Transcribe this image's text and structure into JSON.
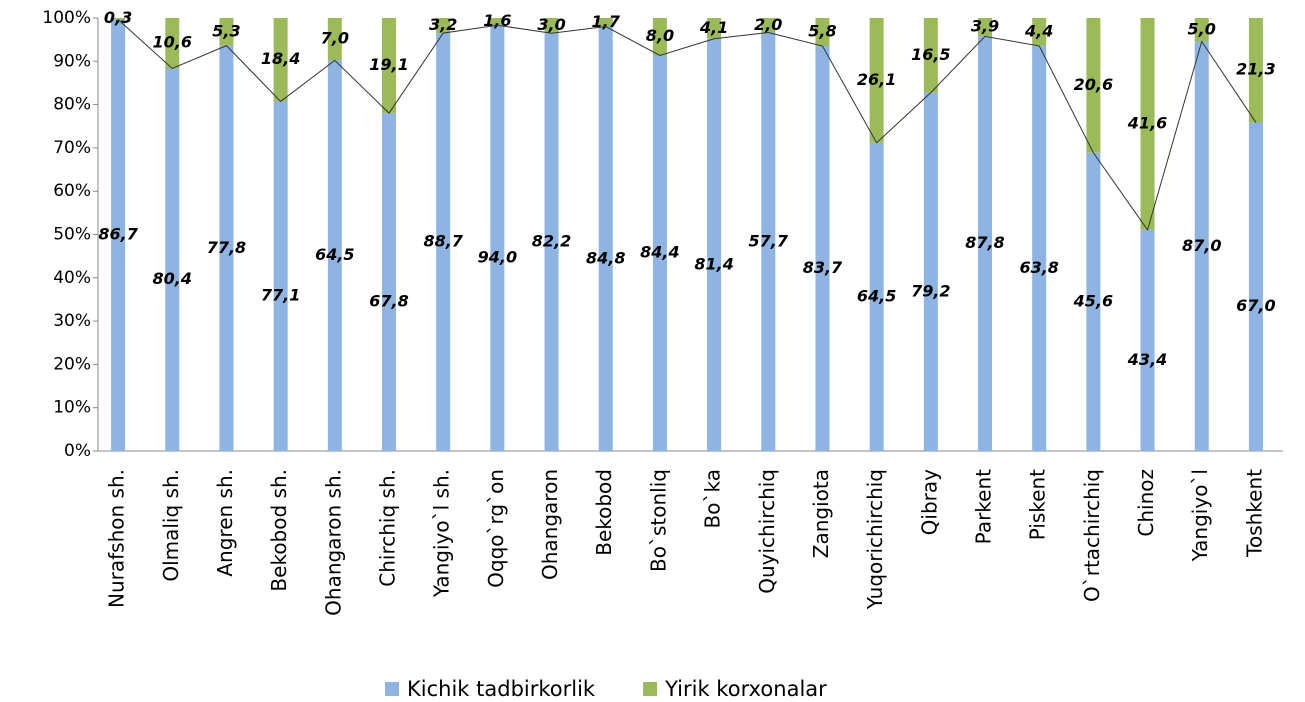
{
  "chart_data": {
    "type": "bar",
    "stacking": "percent",
    "categories": [
      "Nurafshon sh.",
      "Olmaliq sh.",
      "Angren sh.",
      "Bekobod sh.",
      "Ohangaron sh.",
      "Chirchiq sh.",
      "Yangiyo`l sh.",
      "Oqqo`rg`on",
      "Ohangaron",
      "Bekobod",
      "Bo`stonliq",
      "Bo`ka",
      "Quyichirchiq",
      "Zangiota",
      "Yuqorichirchiq",
      "Qibray",
      "Parkent",
      "Piskent",
      "O`rtachirchiq",
      "Chinoz",
      "Yangiyo`l",
      "Toshkent"
    ],
    "series": [
      {
        "name": "Kichik tadbirkorlik",
        "color": "#8db4e2",
        "values": [
          86.7,
          80.4,
          77.8,
          77.1,
          64.5,
          67.8,
          88.7,
          94.0,
          82.2,
          84.8,
          84.4,
          81.4,
          57.7,
          83.7,
          64.5,
          79.2,
          87.8,
          63.8,
          45.6,
          43.4,
          87.0,
          67.0
        ],
        "value_labels": [
          "86,7",
          "80,4",
          "77,8",
          "77,1",
          "64,5",
          "67,8",
          "88,7",
          "94,0",
          "82,2",
          "84,8",
          "84,4",
          "81,4",
          "57,7",
          "83,7",
          "64,5",
          "79,2",
          "87,8",
          "63,8",
          "45,6",
          "43,4",
          "87,0",
          "67,0"
        ]
      },
      {
        "name": "Yirik korxonalar",
        "color": "#9bbb59",
        "values": [
          0.3,
          10.6,
          5.3,
          18.4,
          7.0,
          19.1,
          3.2,
          1.6,
          3.0,
          1.7,
          8.0,
          4.1,
          2.0,
          5.8,
          26.1,
          16.5,
          3.9,
          4.4,
          20.6,
          41.6,
          5.0,
          21.3
        ],
        "value_labels": [
          "0,3",
          "10,6",
          "5,3",
          "18,4",
          "7,0",
          "19,1",
          "3,2",
          "1,6",
          "3,0",
          "1,7",
          "8,0",
          "4,1",
          "2,0",
          "5,8",
          "26,1",
          "16,5",
          "3,9",
          "4,4",
          "20,6",
          "41,6",
          "5,0",
          "21,3"
        ]
      }
    ],
    "ylim": [
      0,
      100
    ],
    "yticks": [
      {
        "value": 0,
        "label": "0%"
      },
      {
        "value": 10,
        "label": "10%"
      },
      {
        "value": 20,
        "label": "20%"
      },
      {
        "value": 30,
        "label": "30%"
      },
      {
        "value": 40,
        "label": "40%"
      },
      {
        "value": 50,
        "label": "50%"
      },
      {
        "value": 60,
        "label": "60%"
      },
      {
        "value": 70,
        "label": "70%"
      },
      {
        "value": 80,
        "label": "80%"
      },
      {
        "value": 90,
        "label": "90%"
      },
      {
        "value": 100,
        "label": "100%"
      }
    ],
    "legend": "bottom"
  }
}
